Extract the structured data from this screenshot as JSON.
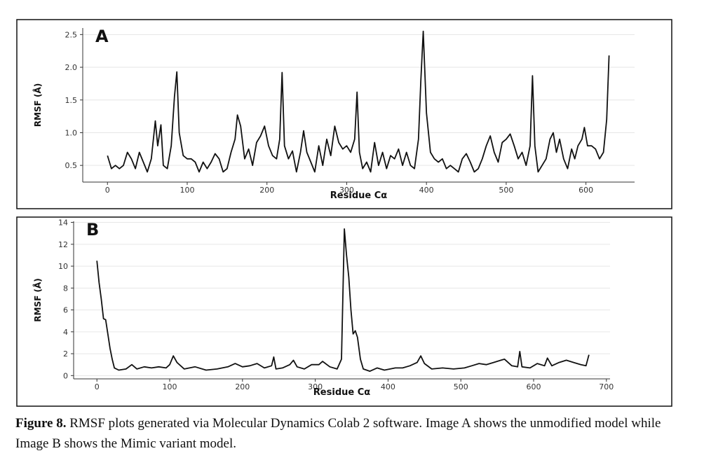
{
  "chart_data": [
    {
      "type": "line",
      "annotation": "A",
      "ylabel": "RMSF (Å)",
      "xlabel": "Residue Cα",
      "grid": true,
      "xlim": [
        -31,
        661
      ],
      "ylim": [
        0.245,
        2.6
      ],
      "xticks": [
        0,
        100,
        200,
        300,
        400,
        500,
        600
      ],
      "yticks": [
        0.5,
        {
          "value": 1,
          "label": "1.0"
        },
        1.5,
        {
          "value": 2,
          "label": "2.0"
        },
        2.5
      ],
      "x": [
        0,
        5,
        10,
        15,
        20,
        25,
        30,
        35,
        40,
        45,
        50,
        55,
        60,
        63,
        67,
        70,
        75,
        80,
        84,
        87,
        90,
        95,
        100,
        105,
        110,
        115,
        120,
        125,
        130,
        135,
        140,
        145,
        150,
        155,
        160,
        163,
        167,
        172,
        177,
        182,
        187,
        192,
        197,
        202,
        207,
        212,
        216,
        219,
        222,
        227,
        232,
        237,
        242,
        246,
        250,
        255,
        260,
        265,
        270,
        275,
        280,
        285,
        290,
        295,
        300,
        305,
        310,
        313,
        316,
        320,
        325,
        330,
        335,
        340,
        345,
        350,
        355,
        360,
        365,
        370,
        375,
        380,
        385,
        390,
        393,
        396,
        400,
        405,
        410,
        415,
        420,
        425,
        430,
        435,
        440,
        445,
        450,
        455,
        460,
        465,
        470,
        475,
        480,
        485,
        490,
        495,
        500,
        505,
        510,
        515,
        520,
        525,
        530,
        533,
        536,
        540,
        545,
        550,
        555,
        559,
        563,
        567,
        572,
        577,
        582,
        586,
        590,
        595,
        598,
        602,
        607,
        612,
        617,
        622,
        626,
        629
      ],
      "series": [
        {
          "color": "#111111",
          "values": [
            0.65,
            0.45,
            0.5,
            0.45,
            0.5,
            0.7,
            0.6,
            0.45,
            0.7,
            0.55,
            0.4,
            0.6,
            1.18,
            0.8,
            1.12,
            0.5,
            0.45,
            0.8,
            1.55,
            1.93,
            1.0,
            0.65,
            0.6,
            0.6,
            0.55,
            0.4,
            0.55,
            0.45,
            0.55,
            0.68,
            0.6,
            0.4,
            0.45,
            0.7,
            0.9,
            1.27,
            1.1,
            0.6,
            0.75,
            0.5,
            0.85,
            0.95,
            1.1,
            0.8,
            0.65,
            0.6,
            0.9,
            1.92,
            0.8,
            0.6,
            0.72,
            0.4,
            0.7,
            1.03,
            0.7,
            0.55,
            0.4,
            0.8,
            0.5,
            0.9,
            0.65,
            1.1,
            0.85,
            0.75,
            0.8,
            0.7,
            0.9,
            1.62,
            0.7,
            0.45,
            0.55,
            0.4,
            0.85,
            0.5,
            0.7,
            0.45,
            0.65,
            0.6,
            0.75,
            0.5,
            0.7,
            0.5,
            0.45,
            0.9,
            1.8,
            2.55,
            1.3,
            0.7,
            0.6,
            0.55,
            0.6,
            0.45,
            0.5,
            0.45,
            0.4,
            0.6,
            0.68,
            0.55,
            0.4,
            0.45,
            0.6,
            0.8,
            0.95,
            0.7,
            0.55,
            0.85,
            0.9,
            0.98,
            0.8,
            0.6,
            0.7,
            0.5,
            0.8,
            1.87,
            0.8,
            0.4,
            0.5,
            0.6,
            0.9,
            1.0,
            0.7,
            0.9,
            0.6,
            0.45,
            0.75,
            0.6,
            0.8,
            0.9,
            1.08,
            0.8,
            0.8,
            0.75,
            0.6,
            0.7,
            1.2,
            2.18
          ]
        }
      ]
    },
    {
      "type": "line",
      "annotation": "B",
      "ylabel": "RMSF (Å)",
      "xlabel": "Residue Cα",
      "grid": true,
      "xlim": [
        -32,
        705
      ],
      "ylim": [
        -0.3,
        14.1
      ],
      "xticks": [
        0,
        100,
        200,
        300,
        400,
        500,
        600,
        700
      ],
      "yticks": [
        0,
        2,
        4,
        6,
        8,
        10,
        12,
        14
      ],
      "x": [
        0,
        3,
        6,
        9,
        12,
        15,
        18,
        21,
        24,
        30,
        40,
        48,
        55,
        65,
        75,
        85,
        95,
        100,
        105,
        110,
        120,
        135,
        150,
        165,
        180,
        190,
        200,
        210,
        220,
        230,
        240,
        243,
        246,
        255,
        265,
        270,
        275,
        285,
        295,
        305,
        310,
        320,
        330,
        336,
        340,
        343,
        346,
        349,
        352,
        355,
        358,
        362,
        366,
        375,
        385,
        395,
        410,
        420,
        430,
        440,
        445,
        450,
        460,
        475,
        490,
        505,
        515,
        525,
        535,
        545,
        555,
        560,
        570,
        578,
        581,
        584,
        595,
        605,
        615,
        619,
        625,
        635,
        645,
        655,
        665,
        672,
        676
      ],
      "series": [
        {
          "color": "#111111",
          "values": [
            10.5,
            8.5,
            7,
            5.2,
            5.1,
            3.8,
            2.5,
            1.5,
            0.7,
            0.5,
            0.6,
            1.0,
            0.6,
            0.8,
            0.7,
            0.8,
            0.7,
            1.0,
            1.8,
            1.2,
            0.6,
            0.8,
            0.5,
            0.6,
            0.8,
            1.1,
            0.8,
            0.9,
            1.1,
            0.7,
            0.9,
            1.7,
            0.6,
            0.7,
            1.0,
            1.4,
            0.8,
            0.6,
            1.0,
            1.0,
            1.3,
            0.8,
            0.6,
            1.5,
            13.4,
            11,
            9,
            6,
            3.8,
            4.1,
            3.5,
            1.5,
            0.6,
            0.4,
            0.7,
            0.5,
            0.7,
            0.7,
            0.9,
            1.2,
            1.8,
            1.1,
            0.6,
            0.7,
            0.6,
            0.7,
            0.9,
            1.1,
            1.0,
            1.2,
            1.4,
            1.5,
            0.9,
            0.8,
            2.2,
            0.8,
            0.7,
            1.1,
            0.9,
            1.6,
            0.9,
            1.2,
            1.4,
            1.2,
            1.0,
            0.9,
            1.9
          ]
        }
      ]
    }
  ],
  "caption": {
    "label": "Figure 8.",
    "text": "RMSF plots generated via Molecular Dynamics Colab 2 software. Image A shows the unmodified model while Image B shows the Mimic variant model."
  }
}
